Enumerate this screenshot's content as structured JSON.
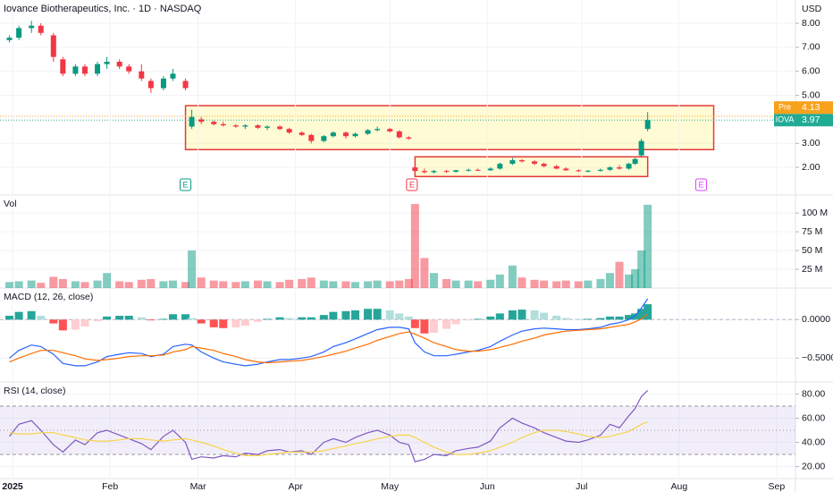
{
  "header": {
    "title": "Iovance Biotherapeutics, Inc. · 1D · NASDAQ",
    "currency": "USD"
  },
  "chart_data": [
    {
      "type": "candlestick",
      "x": [
        0,
        3,
        7,
        10,
        14,
        17,
        21,
        24,
        28,
        31,
        35,
        38,
        42,
        45,
        49,
        52,
        56,
        58,
        61,
        65,
        68,
        72,
        75,
        79,
        82,
        86,
        89,
        93,
        96,
        100,
        103,
        107,
        110,
        114,
        117,
        121,
        124,
        127,
        129,
        132,
        135,
        139,
        142,
        146,
        149,
        153,
        156,
        160,
        163,
        167,
        170,
        174,
        177,
        181,
        184,
        188,
        191,
        194,
        197,
        199,
        201,
        203
      ],
      "open": [
        7.3,
        7.4,
        7.8,
        7.9,
        7.5,
        6.5,
        5.9,
        6.2,
        5.9,
        6.3,
        6.4,
        6.2,
        6.0,
        5.6,
        5.3,
        5.7,
        5.6,
        3.7,
        4.0,
        3.9,
        3.8,
        3.75,
        3.7,
        3.75,
        3.65,
        3.7,
        3.6,
        3.45,
        3.35,
        3.1,
        3.3,
        3.45,
        3.3,
        3.4,
        3.55,
        3.6,
        3.5,
        3.25,
        2.0,
        1.85,
        1.8,
        1.85,
        1.82,
        1.88,
        1.9,
        1.88,
        1.95,
        2.15,
        2.3,
        2.25,
        2.15,
        2.05,
        1.95,
        1.88,
        1.85,
        1.86,
        1.9,
        2.0,
        1.95,
        2.15,
        2.5,
        3.6
      ],
      "high": [
        7.5,
        7.9,
        8.1,
        8.0,
        7.6,
        6.6,
        6.3,
        6.3,
        6.4,
        6.6,
        6.5,
        6.3,
        6.3,
        5.7,
        5.8,
        6.1,
        5.7,
        4.4,
        4.1,
        3.95,
        3.9,
        3.8,
        3.8,
        3.8,
        3.75,
        3.75,
        3.65,
        3.5,
        3.4,
        3.35,
        3.5,
        3.5,
        3.45,
        3.6,
        3.7,
        3.65,
        3.55,
        3.3,
        2.05,
        1.95,
        1.9,
        1.9,
        1.9,
        1.95,
        1.95,
        2.0,
        2.2,
        2.4,
        2.35,
        2.3,
        2.2,
        2.1,
        2.0,
        1.92,
        1.9,
        1.95,
        2.05,
        2.1,
        2.2,
        2.4,
        3.2,
        4.3
      ],
      "low": [
        7.2,
        7.3,
        7.6,
        7.5,
        6.4,
        5.8,
        5.8,
        5.8,
        5.8,
        6.1,
        6.1,
        5.9,
        5.6,
        5.1,
        5.2,
        5.6,
        5.2,
        3.6,
        3.8,
        3.75,
        3.7,
        3.65,
        3.6,
        3.6,
        3.55,
        3.55,
        3.4,
        3.3,
        3.0,
        3.05,
        3.25,
        3.2,
        3.25,
        3.35,
        3.5,
        3.45,
        3.2,
        3.15,
        1.75,
        1.75,
        1.75,
        1.78,
        1.78,
        1.82,
        1.85,
        1.85,
        1.9,
        2.1,
        2.2,
        2.1,
        2.0,
        1.92,
        1.85,
        1.8,
        1.8,
        1.82,
        1.85,
        1.9,
        1.9,
        2.1,
        2.45,
        3.5
      ],
      "close": [
        7.4,
        7.8,
        7.9,
        7.6,
        6.6,
        5.9,
        6.2,
        5.9,
        6.3,
        6.4,
        6.2,
        6.0,
        5.7,
        5.3,
        5.7,
        5.9,
        5.3,
        4.1,
        3.9,
        3.8,
        3.75,
        3.7,
        3.75,
        3.65,
        3.7,
        3.6,
        3.45,
        3.35,
        3.1,
        3.3,
        3.45,
        3.3,
        3.4,
        3.55,
        3.6,
        3.5,
        3.25,
        3.2,
        1.85,
        1.8,
        1.85,
        1.82,
        1.88,
        1.9,
        1.88,
        1.95,
        2.15,
        2.3,
        2.25,
        2.15,
        2.05,
        1.95,
        1.88,
        1.85,
        1.86,
        1.9,
        2.0,
        1.95,
        2.15,
        2.35,
        3.1,
        3.97
      ],
      "up_color": "#089981",
      "down_color": "#f23645",
      "xlim": [
        -3,
        250
      ],
      "ylim": [
        0.85,
        8.97
      ],
      "yticks": [
        {
          "value": 2,
          "label": "2.00"
        },
        {
          "value": 3,
          "label": "3.00"
        },
        {
          "value": 5,
          "label": "5.00"
        },
        {
          "value": 6,
          "label": "6.00"
        },
        {
          "value": 7,
          "label": "7.00"
        },
        {
          "value": 8,
          "label": "8.00"
        }
      ],
      "grid": true,
      "price_labels": [
        {
          "name": "Pre",
          "value": 4.13,
          "color": "#f7a21b"
        },
        {
          "name": "IOVA",
          "value": 3.97,
          "color": "#22ab94"
        }
      ],
      "annotations": [
        {
          "x": [
            56,
            224
          ],
          "y": [
            2.74,
            4.57
          ],
          "color": "#e53935",
          "fill": "rgba(255,235,59,0.22)"
        },
        {
          "x": [
            129,
            203
          ],
          "y": [
            1.62,
            2.44
          ],
          "color": "#e53935",
          "fill": "rgba(255,235,59,0.22)"
        }
      ],
      "events": [
        {
          "x": 56,
          "label": "E",
          "color": "#089981"
        },
        {
          "x": 128,
          "label": "E",
          "color": "#f23645"
        },
        {
          "x": 220,
          "label": "E",
          "color": "#e040fb"
        }
      ]
    },
    {
      "type": "volume",
      "title": "Vol",
      "x": [
        0,
        3,
        7,
        10,
        14,
        17,
        21,
        24,
        28,
        31,
        35,
        38,
        42,
        45,
        49,
        52,
        56,
        58,
        61,
        65,
        68,
        72,
        75,
        79,
        82,
        86,
        89,
        93,
        96,
        100,
        103,
        107,
        110,
        114,
        117,
        121,
        124,
        127,
        129,
        132,
        135,
        139,
        142,
        146,
        149,
        153,
        156,
        160,
        163,
        167,
        170,
        174,
        177,
        181,
        184,
        188,
        191,
        194,
        197,
        199,
        201,
        203
      ],
      "values": [
        8,
        9,
        10,
        7,
        15,
        12,
        9,
        8,
        10,
        20,
        9,
        8,
        11,
        12,
        9,
        10,
        8,
        50,
        14,
        10,
        9,
        8,
        9,
        10,
        9,
        8,
        11,
        12,
        14,
        10,
        9,
        9,
        8,
        9,
        10,
        9,
        10,
        12,
        112,
        40,
        20,
        12,
        10,
        10,
        9,
        11,
        18,
        30,
        14,
        11,
        10,
        9,
        10,
        9,
        10,
        12,
        20,
        35,
        18,
        25,
        50,
        111
      ],
      "up_color": "rgba(8,153,129,0.5)",
      "down_color": "rgba(242,54,69,0.5)",
      "xlim": [
        -3,
        250
      ],
      "ylim": [
        0,
        124
      ],
      "yticks": [
        {
          "value": 25,
          "label": "25 M"
        },
        {
          "value": 50,
          "label": "50 M"
        },
        {
          "value": 75,
          "label": "75 M"
        },
        {
          "value": 100,
          "label": "100 M"
        }
      ],
      "grid": true
    },
    {
      "type": "macd",
      "title": "MACD (12, 26, close)",
      "x": [
        0,
        3,
        7,
        10,
        14,
        17,
        21,
        24,
        28,
        31,
        35,
        38,
        42,
        45,
        49,
        52,
        56,
        58,
        61,
        65,
        68,
        72,
        75,
        79,
        82,
        86,
        89,
        93,
        96,
        100,
        103,
        107,
        110,
        114,
        117,
        121,
        124,
        127,
        129,
        132,
        135,
        139,
        142,
        146,
        149,
        153,
        156,
        160,
        163,
        167,
        170,
        174,
        177,
        181,
        184,
        188,
        191,
        194,
        197,
        199,
        201,
        203
      ],
      "histogram": [
        0.05,
        0.1,
        0.11,
        0.05,
        -0.05,
        -0.14,
        -0.13,
        -0.09,
        -0.02,
        0.04,
        0.05,
        0.05,
        0.03,
        -0.01,
        0.01,
        0.07,
        0.07,
        0.02,
        -0.05,
        -0.1,
        -0.11,
        -0.1,
        -0.08,
        -0.03,
        0.01,
        0.03,
        0.02,
        0.03,
        0.03,
        0.06,
        0.1,
        0.11,
        0.12,
        0.14,
        0.14,
        0.12,
        0.08,
        0.04,
        -0.11,
        -0.18,
        -0.17,
        -0.12,
        -0.06,
        -0.01,
        0.01,
        0.04,
        0.08,
        0.12,
        0.13,
        0.12,
        0.09,
        0.05,
        0.02,
        0.01,
        0.01,
        0.02,
        0.04,
        0.04,
        0.06,
        0.08,
        0.14,
        0.2
      ],
      "histogram_colors": [
        "#26a69a",
        "#b2dfdb",
        "#ff5252",
        "#ffcdd2"
      ],
      "series": [
        {
          "color": "#2962ff",
          "values": [
            -0.5,
            -0.4,
            -0.33,
            -0.35,
            -0.45,
            -0.57,
            -0.6,
            -0.6,
            -0.55,
            -0.48,
            -0.45,
            -0.43,
            -0.44,
            -0.48,
            -0.45,
            -0.35,
            -0.32,
            -0.33,
            -0.42,
            -0.5,
            -0.55,
            -0.58,
            -0.6,
            -0.58,
            -0.55,
            -0.52,
            -0.52,
            -0.5,
            -0.48,
            -0.42,
            -0.35,
            -0.3,
            -0.25,
            -0.18,
            -0.13,
            -0.1,
            -0.1,
            -0.12,
            -0.3,
            -0.42,
            -0.47,
            -0.47,
            -0.45,
            -0.42,
            -0.4,
            -0.35,
            -0.28,
            -0.2,
            -0.15,
            -0.12,
            -0.11,
            -0.12,
            -0.13,
            -0.13,
            -0.12,
            -0.1,
            -0.06,
            -0.04,
            0.0,
            0.05,
            0.15,
            0.27
          ]
        },
        {
          "color": "#ff6d00",
          "values": [
            -0.55,
            -0.5,
            -0.44,
            -0.4,
            -0.4,
            -0.43,
            -0.47,
            -0.51,
            -0.53,
            -0.52,
            -0.5,
            -0.48,
            -0.47,
            -0.47,
            -0.46,
            -0.42,
            -0.39,
            -0.35,
            -0.37,
            -0.4,
            -0.44,
            -0.48,
            -0.52,
            -0.55,
            -0.56,
            -0.55,
            -0.54,
            -0.53,
            -0.51,
            -0.48,
            -0.45,
            -0.41,
            -0.37,
            -0.32,
            -0.27,
            -0.22,
            -0.18,
            -0.16,
            -0.19,
            -0.24,
            -0.3,
            -0.35,
            -0.39,
            -0.41,
            -0.41,
            -0.39,
            -0.36,
            -0.32,
            -0.28,
            -0.24,
            -0.2,
            -0.17,
            -0.15,
            -0.14,
            -0.13,
            -0.12,
            -0.1,
            -0.08,
            -0.06,
            -0.03,
            0.01,
            0.07
          ]
        }
      ],
      "xlim": [
        -3,
        250
      ],
      "ylim": [
        -0.81,
        0.41
      ],
      "yticks": [
        {
          "value": -0.5,
          "label": "−0.5000"
        },
        {
          "value": 0,
          "label": "0.0000"
        }
      ],
      "zero_line": true,
      "grid": true
    },
    {
      "type": "rsi",
      "title": "RSI (14, close)",
      "x": [
        0,
        3,
        7,
        10,
        14,
        17,
        21,
        24,
        28,
        31,
        35,
        38,
        42,
        45,
        49,
        52,
        56,
        58,
        61,
        65,
        68,
        72,
        75,
        79,
        82,
        86,
        89,
        93,
        96,
        100,
        103,
        107,
        110,
        114,
        117,
        121,
        124,
        127,
        129,
        132,
        135,
        139,
        142,
        146,
        149,
        153,
        156,
        160,
        163,
        167,
        170,
        174,
        177,
        181,
        184,
        188,
        191,
        194,
        197,
        199,
        201,
        203
      ],
      "series": [
        {
          "color": "#7e57c2",
          "values": [
            45,
            55,
            58,
            50,
            38,
            32,
            42,
            38,
            48,
            50,
            46,
            43,
            39,
            34,
            45,
            50,
            40,
            26,
            28,
            27,
            29,
            28,
            31,
            30,
            33,
            34,
            32,
            33,
            30,
            40,
            43,
            40,
            44,
            48,
            50,
            46,
            40,
            38,
            24,
            26,
            30,
            29,
            33,
            35,
            36,
            41,
            52,
            60,
            56,
            52,
            48,
            44,
            41,
            40,
            42,
            46,
            55,
            52,
            62,
            68,
            78,
            83
          ]
        },
        {
          "color": "#f7d44a",
          "values": [
            48,
            47,
            47,
            48,
            48,
            46,
            44,
            42,
            41,
            41,
            42,
            43,
            43,
            42,
            41,
            42,
            43,
            42,
            40,
            37,
            34,
            31,
            29,
            29,
            30,
            31,
            32,
            32,
            32,
            33,
            35,
            37,
            39,
            41,
            43,
            45,
            46,
            46,
            44,
            40,
            36,
            32,
            30,
            30,
            31,
            33,
            36,
            40,
            44,
            48,
            50,
            50,
            49,
            47,
            45,
            44,
            45,
            47,
            49,
            52,
            55,
            57
          ]
        }
      ],
      "bands": [
        70,
        50,
        30
      ],
      "band_fill": "rgba(126,87,194,0.10)",
      "xlim": [
        -3,
        250
      ],
      "ylim": [
        10,
        90
      ],
      "yticks": [
        {
          "value": 20,
          "label": "20.00"
        },
        {
          "value": 40,
          "label": "40.00"
        },
        {
          "value": 60,
          "label": "60.00"
        },
        {
          "value": 80,
          "label": "80.00"
        }
      ],
      "xticks": [
        {
          "value": 1,
          "label": "2025"
        },
        {
          "value": 32,
          "label": "Feb"
        },
        {
          "value": 60,
          "label": "Mar"
        },
        {
          "value": 91,
          "label": "Apr"
        },
        {
          "value": 121,
          "label": "May"
        },
        {
          "value": 152,
          "label": "Jun"
        },
        {
          "value": 182,
          "label": "Jul"
        },
        {
          "value": 213,
          "label": "Aug"
        },
        {
          "value": 244,
          "label": "Sep"
        }
      ],
      "grid": true
    }
  ]
}
